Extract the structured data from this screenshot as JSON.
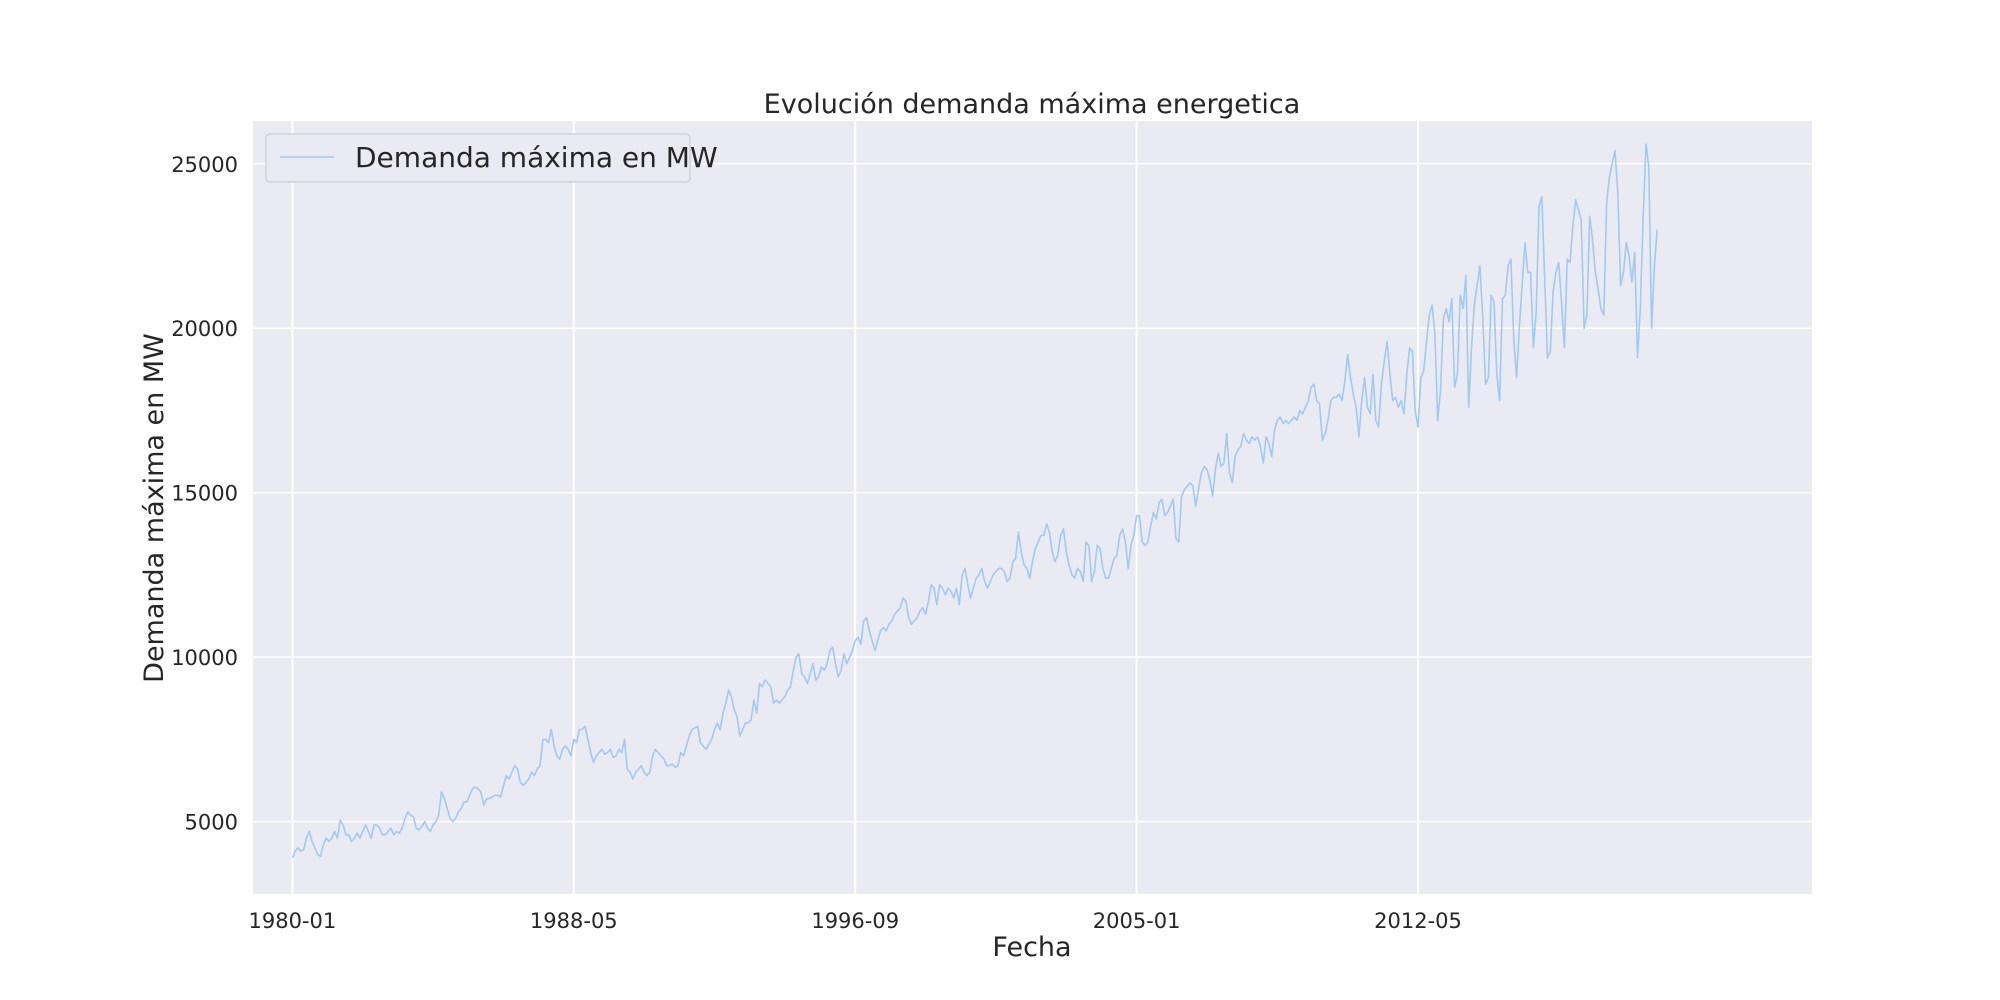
{
  "chart_data": {
    "type": "line",
    "title": "Evolución demanda máxima energetica",
    "xlabel": "Fecha",
    "ylabel": "Demanda máxima en MW",
    "x_range_months": [
      -14,
      540
    ],
    "ylim": [
      2800,
      26300
    ],
    "x_ticks": [
      {
        "label": "1980-01",
        "month_index": 0
      },
      {
        "label": "1988-05",
        "month_index": 100
      },
      {
        "label": "1996-09",
        "month_index": 200
      },
      {
        "label": "2005-01",
        "month_index": 300
      },
      {
        "label": "2012-05",
        "month_index": 400
      }
    ],
    "y_ticks": [
      5000,
      10000,
      15000,
      20000,
      25000
    ],
    "y_tick_labels": [
      "5000",
      "10000",
      "15000",
      "20000",
      "25000"
    ],
    "grid": true,
    "legend": {
      "position": "top-left",
      "entries": [
        "Demanda máxima en MW"
      ]
    },
    "colors": {
      "series": "#a1c9f4",
      "plot_bg": "#eaeaf2",
      "grid": "#ffffff",
      "text": "#262626"
    },
    "x_start": "1980-01",
    "x_step": "1 month",
    "series": [
      {
        "name": "Demanda máxima en MW",
        "values": [
          3900,
          4100,
          4200,
          4100,
          4150,
          4500,
          4700,
          4400,
          4200,
          4000,
          3950,
          4300,
          4500,
          4400,
          4500,
          4700,
          4500,
          5050,
          4900,
          4600,
          4600,
          4400,
          4500,
          4650,
          4500,
          4700,
          4900,
          4700,
          4500,
          4900,
          4900,
          4800,
          4600,
          4600,
          4700,
          4800,
          4600,
          4700,
          4650,
          4800,
          5100,
          5300,
          5200,
          5150,
          4800,
          4750,
          4850,
          5000,
          4800,
          4700,
          4900,
          5000,
          5200,
          5900,
          5700,
          5400,
          5100,
          5000,
          5100,
          5300,
          5400,
          5600,
          5600,
          5800,
          6000,
          6050,
          6000,
          5900,
          5500,
          5700,
          5700,
          5750,
          5800,
          5800,
          5750,
          6100,
          6400,
          6300,
          6500,
          6700,
          6600,
          6200,
          6100,
          6200,
          6300,
          6500,
          6400,
          6600,
          6700,
          7500,
          7500,
          7400,
          7800,
          7300,
          7000,
          6900,
          7200,
          7300,
          7200,
          7000,
          7500,
          7400,
          7800,
          7800,
          7900,
          7500,
          7100,
          6800,
          7000,
          7100,
          7200,
          7050,
          7100,
          7200,
          6950,
          7000,
          7200,
          7100,
          7500,
          6600,
          6500,
          6300,
          6500,
          6600,
          6700,
          6500,
          6400,
          6500,
          7000,
          7200,
          7100,
          7000,
          6900,
          6700,
          6700,
          6750,
          6650,
          6700,
          7100,
          7000,
          7300,
          7600,
          7800,
          7850,
          7900,
          7400,
          7300,
          7200,
          7350,
          7500,
          7800,
          8000,
          7800,
          8300,
          8600,
          9000,
          8800,
          8400,
          8200,
          7600,
          7800,
          8000,
          8000,
          8100,
          8700,
          8300,
          9200,
          9100,
          9300,
          9200,
          9100,
          8600,
          8700,
          8600,
          8700,
          8800,
          9000,
          9100,
          9600,
          10000,
          10100,
          9500,
          9400,
          9200,
          9500,
          9800,
          9300,
          9400,
          9700,
          9600,
          9800,
          10200,
          10300,
          9800,
          9400,
          9600,
          10100,
          9800,
          10000,
          10200,
          10500,
          10600,
          10400,
          11100,
          11200,
          10800,
          10500,
          10200,
          10500,
          10800,
          10900,
          10800,
          11000,
          11100,
          11300,
          11400,
          11500,
          11800,
          11700,
          11200,
          11000,
          11100,
          11200,
          11400,
          11500,
          11300,
          11700,
          12200,
          12100,
          11600,
          12200,
          12100,
          11900,
          12100,
          12000,
          11800,
          12100,
          11600,
          12500,
          12700,
          12200,
          11800,
          12100,
          12400,
          12500,
          12700,
          12300,
          12100,
          12300,
          12500,
          12600,
          12700,
          12700,
          12600,
          12300,
          12400,
          12900,
          13000,
          13800,
          13200,
          12800,
          12700,
          12400,
          12900,
          13300,
          13500,
          13700,
          13700,
          14050,
          13800,
          13200,
          12900,
          13100,
          13700,
          13900,
          13200,
          12800,
          12500,
          12400,
          12700,
          12600,
          12300,
          13500,
          13400,
          12300,
          12600,
          13400,
          13300,
          12700,
          12400,
          12400,
          12700,
          13000,
          13100,
          13700,
          13900,
          13500,
          12700,
          13400,
          13700,
          14300,
          14300,
          13500,
          13400,
          13500,
          14000,
          14400,
          14200,
          14700,
          14800,
          14300,
          14400,
          14600,
          14800,
          13600,
          13500,
          14900,
          15100,
          15200,
          15300,
          15200,
          14600,
          15100,
          15600,
          15800,
          15700,
          15400,
          14900,
          15700,
          16200,
          15800,
          15900,
          16800,
          15600,
          15300,
          16100,
          16300,
          16400,
          16800,
          16600,
          16500,
          16700,
          16600,
          16700,
          16400,
          15900,
          16700,
          16500,
          16100,
          16900,
          17200,
          17300,
          17100,
          17200,
          17100,
          17200,
          17300,
          17200,
          17500,
          17400,
          17600,
          17800,
          18200,
          18300,
          17800,
          17700,
          16600,
          16800,
          17200,
          17800,
          17900,
          17900,
          18000,
          17800,
          18400,
          19200,
          18500,
          18000,
          17600,
          16700,
          17800,
          18500,
          17600,
          17400,
          18600,
          17200,
          17000,
          18300,
          19000,
          19600,
          18600,
          17800,
          17900,
          17600,
          17800,
          17400,
          18600,
          19400,
          19300,
          17500,
          17000,
          18500,
          18700,
          19600,
          20400,
          20700,
          19800,
          17200,
          18100,
          20300,
          20600,
          20200,
          20900,
          18200,
          18600,
          21000,
          20600,
          21600,
          17600,
          19400,
          20700,
          21300,
          21900,
          20300,
          18300,
          18500,
          21000,
          20800,
          18600,
          17800,
          20900,
          21000,
          21900,
          22100,
          19700,
          18500,
          20000,
          21300,
          22600,
          21700,
          21700,
          19400,
          20500,
          23700,
          24000,
          21500,
          19100,
          19300,
          21100,
          21700,
          22000,
          20800,
          19400,
          22100,
          22000,
          23100,
          23900,
          23600,
          23300,
          20000,
          20400,
          23400,
          22700,
          21700,
          21200,
          20600,
          20400,
          23800,
          24600,
          25000,
          25400,
          24100,
          21300,
          21700,
          22600,
          22200,
          21400,
          22300,
          19100,
          20600,
          23400,
          25600,
          24900,
          20000,
          21900,
          23000
        ]
      }
    ]
  }
}
